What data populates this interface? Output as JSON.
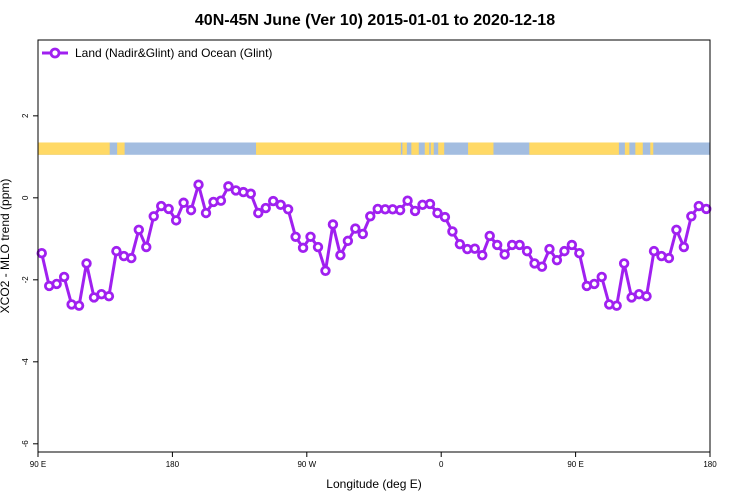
{
  "chart_data": {
    "type": "line",
    "title": "40N-45N June (Ver 10)   2015-01-01 to 2020-12-18",
    "xlabel": "Longitude (deg E)",
    "ylabel": "XCO2 - MLO trend (ppm)",
    "x_ticks": [
      {
        "value": 90,
        "label": "90 E"
      },
      {
        "value": 180,
        "label": "180"
      },
      {
        "value": 270,
        "label": "90 W"
      },
      {
        "value": 360,
        "label": "0"
      },
      {
        "value": 450,
        "label": "90 E"
      },
      {
        "value": 540,
        "label": "180"
      }
    ],
    "y_ticks": [
      {
        "value": -6,
        "label": "-6"
      },
      {
        "value": -4,
        "label": "-4"
      },
      {
        "value": -2,
        "label": "-2"
      },
      {
        "value": 0,
        "label": "0"
      },
      {
        "value": 2,
        "label": "2"
      }
    ],
    "xlim": [
      90,
      540
    ],
    "ylim": [
      -6.2,
      3.85
    ],
    "grid": false,
    "legend_position": "top-left",
    "colors": {
      "series": "#a020f0",
      "land": "#ffd966",
      "ocean": "#a3bde0"
    },
    "surface_bar": {
      "y_range": [
        1.05,
        1.35
      ],
      "land": [
        [
          90,
          138
        ],
        [
          143,
          148
        ],
        [
          236,
          333
        ],
        [
          334,
          337
        ],
        [
          340,
          345
        ],
        [
          349,
          352
        ],
        [
          353,
          355
        ],
        [
          358,
          362
        ],
        [
          378,
          395
        ],
        [
          419,
          479
        ],
        [
          483,
          486
        ],
        [
          490,
          495
        ],
        [
          500,
          502
        ]
      ]
    },
    "series": [
      {
        "name": "Land (Nadir&Glint) and Ocean (Glint)",
        "x": [
          92.5,
          97.5,
          102.5,
          107.5,
          112.5,
          117.5,
          122.5,
          127.5,
          132.5,
          137.5,
          142.5,
          147.5,
          152.5,
          157.5,
          162.5,
          167.5,
          172.5,
          177.5,
          182.5,
          187.5,
          192.5,
          197.5,
          202.5,
          207.5,
          212.5,
          217.5,
          222.5,
          227.5,
          232.5,
          237.5,
          242.5,
          247.5,
          252.5,
          257.5,
          262.5,
          267.5,
          272.5,
          277.5,
          282.5,
          287.5,
          292.5,
          297.5,
          302.5,
          307.5,
          312.5,
          317.5,
          322.5,
          327.5,
          332.5,
          337.5,
          342.5,
          347.5,
          352.5,
          357.5,
          362.5,
          367.5,
          372.5,
          377.5,
          382.5,
          387.5,
          392.5,
          397.5,
          402.5,
          407.5,
          412.5,
          417.5,
          422.5,
          427.5,
          432.5,
          437.5,
          442.5,
          447.5,
          452.5,
          457.5,
          462.5,
          467.5,
          472.5,
          477.5,
          482.5,
          487.5,
          492.5,
          497.5,
          502.5,
          507.5,
          512.5,
          517.5,
          522.5,
          527.5,
          532.5,
          537.5
        ],
        "values": [
          -1.35,
          -2.15,
          -2.1,
          -1.93,
          -2.6,
          -2.63,
          -1.6,
          -2.43,
          -2.35,
          -2.4,
          -1.3,
          -1.42,
          -1.47,
          -0.78,
          -1.2,
          -0.45,
          -0.2,
          -0.27,
          -0.55,
          -0.12,
          -0.3,
          0.32,
          -0.37,
          -0.1,
          -0.07,
          0.28,
          0.18,
          0.14,
          0.1,
          -0.37,
          -0.25,
          -0.08,
          -0.17,
          -0.28,
          -0.95,
          -1.22,
          -0.95,
          -1.2,
          -1.78,
          -0.65,
          -1.4,
          -1.05,
          -0.75,
          -0.88,
          -0.45,
          -0.27,
          -0.28,
          -0.28,
          -0.3,
          -0.07,
          -0.32,
          -0.17,
          -0.15,
          -0.37,
          -0.47,
          -0.82,
          -1.13,
          -1.25,
          -1.24,
          -1.4,
          -0.93,
          -1.15,
          -1.38,
          -1.15,
          -1.15,
          -1.3,
          -1.6,
          -1.68,
          -1.25,
          -1.52,
          -1.3,
          -1.15,
          -1.35,
          -2.15,
          -2.1,
          -1.93,
          -2.6,
          -2.63,
          -1.6,
          -2.43,
          -2.35,
          -2.4,
          -1.3,
          -1.42,
          -1.47,
          -0.78,
          -1.2,
          -0.45,
          -0.2,
          -0.27
        ]
      }
    ]
  }
}
